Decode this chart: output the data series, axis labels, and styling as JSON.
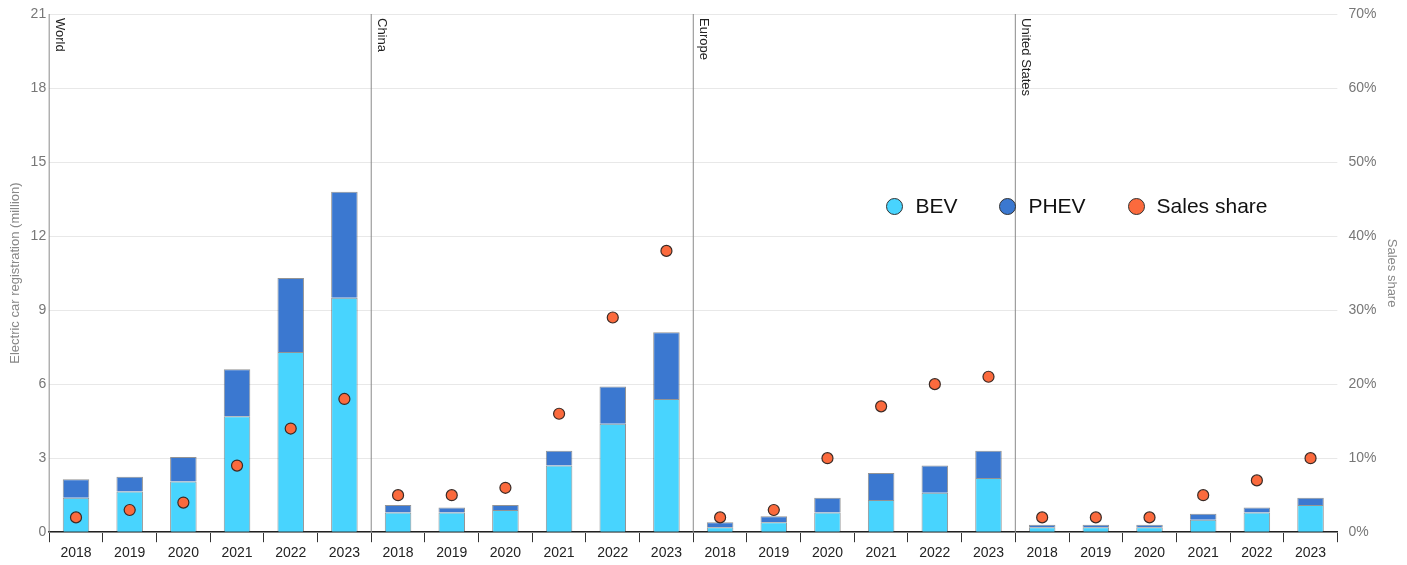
{
  "chart_data": {
    "type": "bar",
    "stacked": true,
    "ylabel": "Electric car registration (million)",
    "y2label": "Sales share",
    "categories": [
      "2018",
      "2019",
      "2020",
      "2021",
      "2022",
      "2023",
      "2018",
      "2019",
      "2020",
      "2021",
      "2022",
      "2023",
      "2018",
      "2019",
      "2020",
      "2021",
      "2022",
      "2023",
      "2018",
      "2019",
      "2020",
      "2021",
      "2022",
      "2023"
    ],
    "series": [
      {
        "name": "BEV",
        "color": "#48d4fe",
        "values": [
          1.4,
          1.65,
          2.05,
          4.7,
          7.3,
          9.5,
          0.8,
          0.8,
          0.9,
          2.7,
          4.4,
          5.4,
          0.2,
          0.4,
          0.8,
          1.3,
          1.6,
          2.2,
          0.2,
          0.2,
          0.2,
          0.5,
          0.8,
          1.1
        ]
      },
      {
        "name": "PHEV",
        "color": "#3b78d0",
        "values": [
          0.75,
          0.6,
          1.0,
          1.9,
          3.0,
          4.3,
          0.3,
          0.2,
          0.2,
          0.6,
          1.5,
          2.7,
          0.2,
          0.25,
          0.6,
          1.1,
          1.1,
          1.1,
          0.1,
          0.1,
          0.1,
          0.25,
          0.2,
          0.3
        ]
      },
      {
        "name": "Sales share",
        "type": "scatter",
        "axis": "y2",
        "color": "#fb6a3d",
        "values": [
          2,
          3,
          4,
          9,
          14,
          18,
          5,
          5,
          6,
          16,
          29,
          38,
          2,
          3,
          10,
          17,
          20,
          21,
          2,
          2,
          2,
          5,
          7,
          10
        ]
      }
    ],
    "ylim": [
      0,
      21
    ],
    "yticks": [
      0,
      3,
      6,
      9,
      12,
      15,
      18,
      21
    ],
    "y2lim": [
      0,
      70
    ],
    "y2ticks": [
      {
        "value": 0,
        "label": "0%"
      },
      {
        "value": 10,
        "label": "10%"
      },
      {
        "value": 20,
        "label": "20%"
      },
      {
        "value": 30,
        "label": "30%"
      },
      {
        "value": 40,
        "label": "40%"
      },
      {
        "value": 50,
        "label": "50%"
      },
      {
        "value": 60,
        "label": "60%"
      },
      {
        "value": 70,
        "label": "70%"
      }
    ],
    "annotations": [
      "World",
      "China",
      "Europe",
      "United States"
    ],
    "grid": "y",
    "legend": "top right",
    "marker": "circle"
  }
}
